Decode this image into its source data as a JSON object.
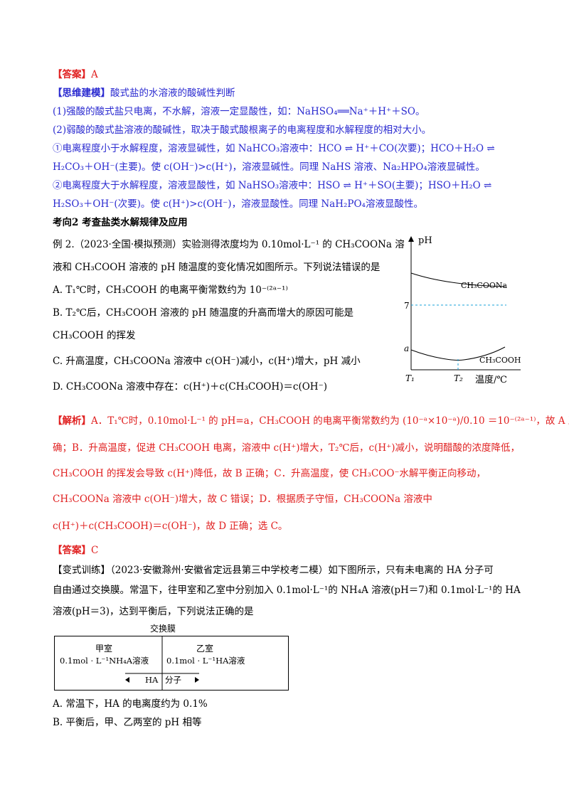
{
  "answer1": {
    "tag": "【答案】",
    "value": "A"
  },
  "model": {
    "tag": "【思维建模】",
    "title": "酸式盐的水溶液的酸碱性判断",
    "p1": "(1)强酸的酸式盐只电离，不水解，溶液一定显酸性，如：NaHSO₄══Na⁺＋H⁺＋SO。",
    "p2": "(2)弱酸的酸式盐溶液的酸碱性，取决于酸式酸根离子的电离程度和水解程度的相对大小。",
    "p3a": "①电离程度小于水解程度，溶液显碱性，如 NaHCO₃溶液中：HCO ⇌ H⁺＋CO(次要)；HCO＋H₂O ⇌",
    "p3b": "H₂CO₃＋OH⁻(主要)。使 c(OH⁻)>c(H⁺)，溶液显碱性。同理 NaHS 溶液、Na₂HPO₄溶液显碱性。",
    "p4a": "②电离程度大于水解程度，溶液显酸性，如 NaHSO₃溶液中：HSO ⇌ H⁺＋SO(主要)；HSO＋H₂O ⇌",
    "p4b": "H₂SO₃＋OH⁻(次要)。使 c(H⁺)>c(OH⁻)，溶液显酸性。同理 NaH₂PO₄溶液显酸性。"
  },
  "section": "考向2  考查盐类水解规律及应用",
  "example": {
    "l1": "例 2.（2023·全国·模拟预测）实验测得浓度均为 0.10mol·L⁻¹ 的 CH₃COONa 溶",
    "l2": "液和 CH₃COOH 溶液的 pH 随温度的变化情况如图所示。下列说法错误的是",
    "a": "A.  T₁℃时，CH₃COOH 的电离平衡常数约为 10⁻⁽²ᵃ⁻¹⁾",
    "b1": "B.  T₂℃后，CH₃COOH 溶液的 pH 随温度的升高而增大的原因可能是",
    "b2": "CH₃COOH 的挥发",
    "c": "C.  升高温度，CH₃COONa 溶液中 c(OH⁻)减小，c(H⁺)增大，pH 减小",
    "d": "D.  CH₃COONa 溶液中存在：c(H⁺)＋c(CH₃COOH)＝c(OH⁻)"
  },
  "graph": {
    "ylabel": "pH",
    "xlabel": "温度/℃",
    "y7": "7",
    "ya": "a",
    "t1": "T₁",
    "t2": "T₂",
    "curve1": "CH₃COONa",
    "curve2": "CH₃COOH"
  },
  "analysis": {
    "tag": "【解析】",
    "l1": "A．T₁℃时，0.10mol·L⁻¹ 的 pH=a，CH₃COOH 的电离平衡常数约为 (10⁻ᵃ×10⁻ᵃ)/0.10 ＝10⁻⁽²ᵃ⁻¹⁾，故 A 正",
    "l2": "确；B．升高温度，促进 CH₃COOH 电离，溶液中 c(H⁺)增大，T₂℃后，c(H⁺)减小，说明醋酸的浓度降低，",
    "l3": "CH₃COOH 的挥发会导致 c(H⁺)降低，故 B 正确；C．升高温度，使 CH₃COO⁻水解平衡正向移动，",
    "l4": "CH₃COONa 溶液中 c(OH⁻)增大，故 C 错误；D．根据质子守恒，CH₃COONa 溶液中",
    "l5": "c(H⁺)＋c(CH₃COOH)＝c(OH⁻)，故 D 正确；选 C。"
  },
  "answer2": {
    "tag": "【答案】",
    "value": "C"
  },
  "variant": {
    "l1": "【变式训练】（2023·安徽滁州·安徽省定远县第三中学校考二模）如下图所示，只有未电离的 HA 分子可",
    "l2": "自由通过交换膜。常温下，往甲室和乙室中分别加入 0.1mol·L⁻¹的 NH₄A 溶液(pH＝7)和 0.1mol·L⁻¹的 HA",
    "l3": "溶液(pH＝3)，达到平衡后，下列说法正确的是",
    "a": "A.  常温下，HA 的电离度约为 0.1%",
    "b": "B.  平衡后，甲、乙两室的 pH 相等"
  },
  "figure": {
    "membrane": "交换膜",
    "left_title": "甲室",
    "left_sol": "0.1mol · L⁻¹NH₄A溶液",
    "right_title": "乙室",
    "right_sol": "0.1mol · L⁻¹HA溶液",
    "ha": "HA",
    "mol": "分子"
  }
}
